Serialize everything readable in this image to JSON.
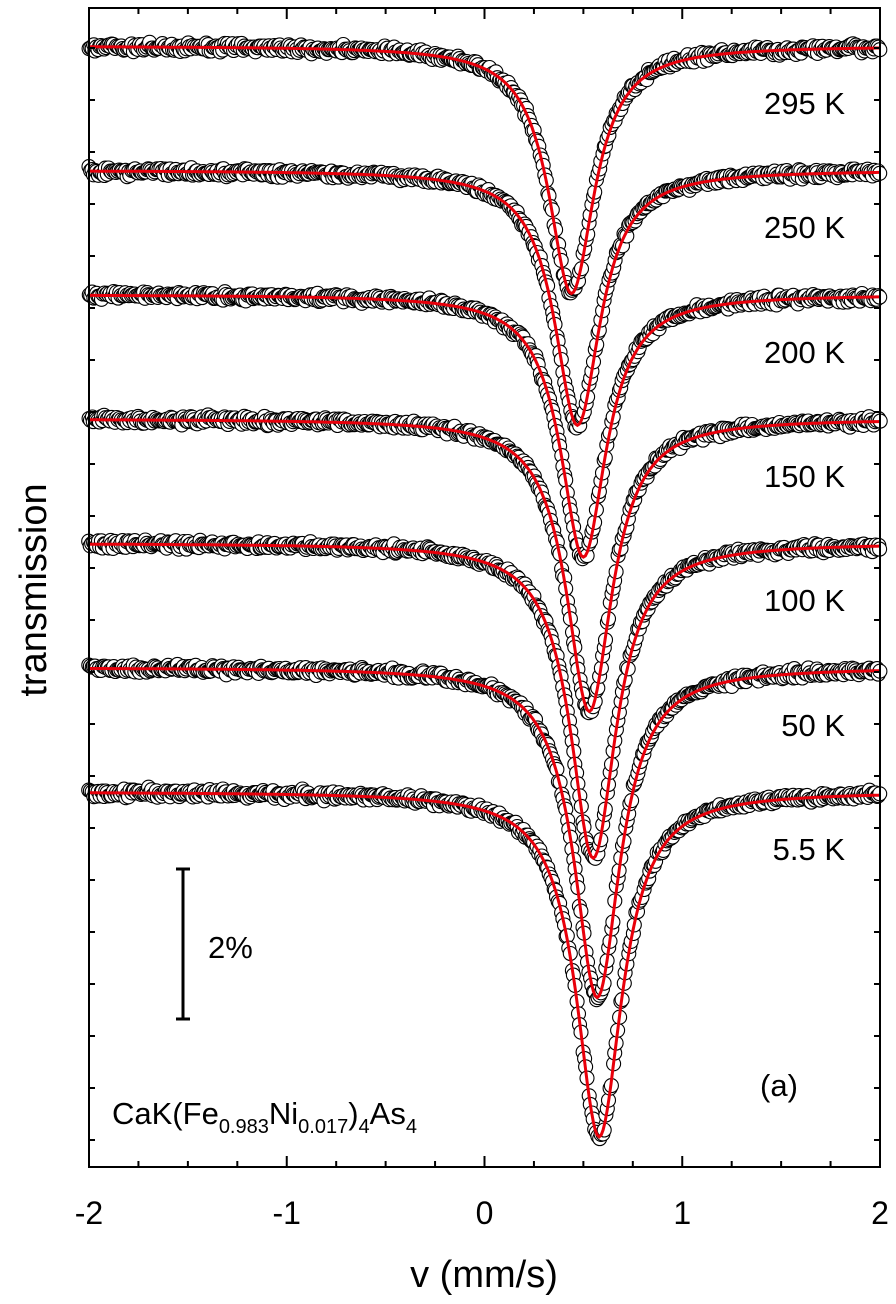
{
  "chart_data": {
    "type": "scatter",
    "title": "",
    "xlabel": "v (mm/s)",
    "ylabel": "transmission",
    "xlim": [
      -2,
      2
    ],
    "x_ticks": [
      "-2",
      "-1",
      "0",
      "1",
      "2"
    ],
    "grid": false,
    "panel_label": "(a)",
    "compound": {
      "base": "CaK(Fe",
      "sub1": "0.983",
      "mid": "Ni",
      "sub2": "0.017",
      "close": ")",
      "sub3": "4",
      "tail": "As",
      "sub4": "4"
    },
    "scale_bar": {
      "label": "2%",
      "percent": 2
    },
    "series": [
      {
        "label": "295 K",
        "temperature_K": 295,
        "center_mm_s": 0.44,
        "depth_percent": 3.3,
        "hwhm_mm_s": 0.14
      },
      {
        "label": "250 K",
        "temperature_K": 250,
        "center_mm_s": 0.47,
        "depth_percent": 3.4,
        "hwhm_mm_s": 0.14
      },
      {
        "label": "200 K",
        "temperature_K": 200,
        "center_mm_s": 0.5,
        "depth_percent": 3.5,
        "hwhm_mm_s": 0.14
      },
      {
        "label": "150 K",
        "temperature_K": 150,
        "center_mm_s": 0.53,
        "depth_percent": 3.9,
        "hwhm_mm_s": 0.14
      },
      {
        "label": "100 K",
        "temperature_K": 100,
        "center_mm_s": 0.55,
        "depth_percent": 4.2,
        "hwhm_mm_s": 0.14
      },
      {
        "label": "50 K",
        "temperature_K": 50,
        "center_mm_s": 0.57,
        "depth_percent": 4.4,
        "hwhm_mm_s": 0.14
      },
      {
        "label": "5.5 K",
        "temperature_K": 5.5,
        "center_mm_s": 0.58,
        "depth_percent": 4.6,
        "hwhm_mm_s": 0.14
      }
    ],
    "colors": {
      "fit": "#e8000b",
      "points": "#000000",
      "axes": "#000000"
    }
  }
}
